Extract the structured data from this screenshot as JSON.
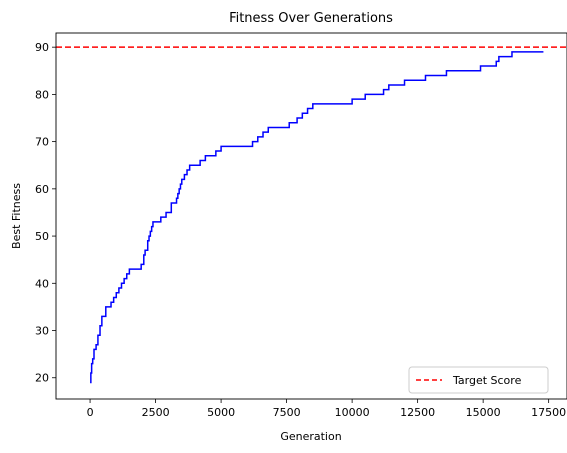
{
  "chart_data": {
    "type": "line",
    "title": "Fitness Over Generations",
    "xlabel": "Generation",
    "ylabel": "Best Fitness",
    "xlim": [
      -1300,
      18200
    ],
    "ylim": [
      15.5,
      93.0
    ],
    "xticks": [
      0,
      2500,
      5000,
      7500,
      10000,
      12500,
      15000,
      17500
    ],
    "yticks": [
      20,
      30,
      40,
      50,
      60,
      70,
      80,
      90
    ],
    "grid": false,
    "legend_position": "lower-right",
    "series": [
      {
        "name": "",
        "color": "#0000ff",
        "style": "step",
        "x": [
          0,
          30,
          60,
          100,
          150,
          230,
          300,
          380,
          450,
          600,
          800,
          900,
          1000,
          1100,
          1200,
          1300,
          1400,
          1500,
          1950,
          2050,
          2100,
          2200,
          2250,
          2300,
          2350,
          2400,
          2700,
          2900,
          3100,
          3300,
          3350,
          3400,
          3450,
          3500,
          3600,
          3700,
          3800,
          4000,
          4200,
          4400,
          4800,
          5000,
          6000,
          6200,
          6400,
          6600,
          6800,
          7600,
          7900,
          8100,
          8300,
          8500,
          8700,
          10000,
          10500,
          11200,
          11400,
          11600,
          12000,
          12800,
          13600,
          14900,
          15500,
          15600,
          15700,
          16100,
          17300
        ],
        "y": [
          19,
          21,
          23,
          24,
          26,
          27,
          29,
          31,
          33,
          35,
          36,
          37,
          38,
          39,
          40,
          41,
          42,
          43,
          44,
          46,
          47,
          49,
          50,
          51,
          52,
          53,
          54,
          55,
          57,
          58,
          59,
          60,
          61,
          62,
          63,
          64,
          65,
          65,
          66,
          67,
          68,
          69,
          69,
          70,
          71,
          72,
          73,
          74,
          75,
          76,
          77,
          78,
          78,
          79,
          80,
          81,
          82,
          82,
          83,
          84,
          85,
          86,
          87,
          88,
          88,
          89,
          89
        ]
      },
      {
        "name": "Target Score",
        "color": "#ff0000",
        "style": "dashed-hline",
        "y_value": 90
      }
    ]
  }
}
